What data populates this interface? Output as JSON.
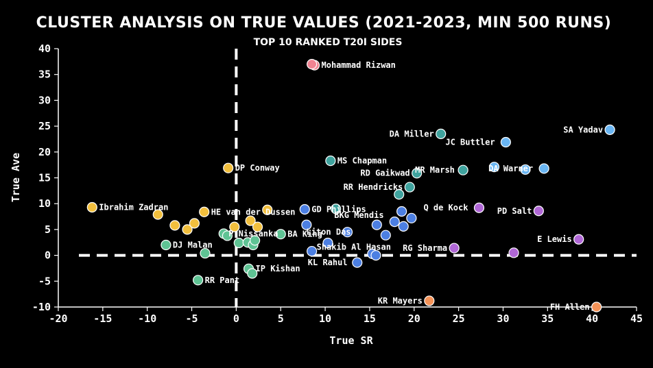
{
  "chart_data": {
    "type": "scatter",
    "title": "CLUSTER ANALYSIS ON TRUE VALUES (2021-2023, MIN 500 RUNS)",
    "subtitle": "TOP 10 RANKED T20I SIDES",
    "xlabel": "True SR",
    "ylabel": "True Ave",
    "xlim": [
      -20,
      45
    ],
    "ylim": [
      -10,
      40
    ],
    "xticks": [
      -20,
      -15,
      -10,
      -5,
      0,
      5,
      10,
      15,
      20,
      25,
      30,
      35,
      40,
      45
    ],
    "yticks": [
      -10,
      -5,
      0,
      5,
      10,
      15,
      20,
      25,
      30,
      35,
      40
    ],
    "reference_lines": {
      "x": 0,
      "y": 0
    },
    "colors": {
      "pink": "#f08392",
      "yellow": "#f2bf3d",
      "green": "#5fc394",
      "teal": "#3fa39e",
      "blue": "#4c7fe2",
      "lightblue": "#6ab6f3",
      "purple": "#b067d6",
      "orange": "#f59358"
    },
    "points": [
      {
        "x": 8.8,
        "y": 36.8,
        "cluster": "pink",
        "label": "Mohammad Rizwan"
      },
      {
        "x": 8.5,
        "y": 37.0,
        "cluster": "pink",
        "label": ""
      },
      {
        "x": -16.2,
        "y": 9.3,
        "cluster": "yellow",
        "label": "Ibrahim Zadran"
      },
      {
        "x": -8.8,
        "y": 7.9,
        "cluster": "yellow",
        "label": ""
      },
      {
        "x": -6.9,
        "y": 5.8,
        "cluster": "yellow",
        "label": ""
      },
      {
        "x": -5.5,
        "y": 5.0,
        "cluster": "yellow",
        "label": ""
      },
      {
        "x": -4.7,
        "y": 6.2,
        "cluster": "yellow",
        "label": ""
      },
      {
        "x": -3.6,
        "y": 8.4,
        "cluster": "yellow",
        "label": "HE van der Dussen"
      },
      {
        "x": -0.9,
        "y": 16.9,
        "cluster": "yellow",
        "label": "DP Conway"
      },
      {
        "x": -0.2,
        "y": 5.5,
        "cluster": "yellow",
        "label": ""
      },
      {
        "x": 1.6,
        "y": 6.7,
        "cluster": "yellow",
        "label": ""
      },
      {
        "x": 2.4,
        "y": 5.5,
        "cluster": "yellow",
        "label": ""
      },
      {
        "x": 3.5,
        "y": 8.8,
        "cluster": "yellow",
        "label": ""
      },
      {
        "x": -7.9,
        "y": 2.0,
        "cluster": "green",
        "label": "DJ Malan"
      },
      {
        "x": -3.5,
        "y": 0.4,
        "cluster": "green",
        "label": ""
      },
      {
        "x": -1.4,
        "y": 4.2,
        "cluster": "green",
        "label": "P Nissanka"
      },
      {
        "x": -1.0,
        "y": 3.8,
        "cluster": "green",
        "label": ""
      },
      {
        "x": 0.3,
        "y": 2.4,
        "cluster": "green",
        "label": ""
      },
      {
        "x": 1.3,
        "y": 2.5,
        "cluster": "green",
        "label": ""
      },
      {
        "x": 1.9,
        "y": 2.0,
        "cluster": "green",
        "label": ""
      },
      {
        "x": 2.1,
        "y": 2.9,
        "cluster": "green",
        "label": ""
      },
      {
        "x": 5.0,
        "y": 4.1,
        "cluster": "green",
        "label": "BA King"
      },
      {
        "x": 1.4,
        "y": -2.6,
        "cluster": "green",
        "label": "IP Kishan"
      },
      {
        "x": 1.8,
        "y": -3.5,
        "cluster": "green",
        "label": ""
      },
      {
        "x": -4.3,
        "y": -4.8,
        "cluster": "green",
        "label": "RR Pant"
      },
      {
        "x": 10.6,
        "y": 18.3,
        "cluster": "teal",
        "label": "MS Chapman"
      },
      {
        "x": 23.0,
        "y": 23.5,
        "cluster": "teal",
        "label": "DA Miller"
      },
      {
        "x": 20.3,
        "y": 15.9,
        "cluster": "teal",
        "label": "RD Gaikwad"
      },
      {
        "x": 19.5,
        "y": 13.2,
        "cluster": "teal",
        "label": "RR Hendricks"
      },
      {
        "x": 18.3,
        "y": 11.8,
        "cluster": "teal",
        "label": ""
      },
      {
        "x": 11.2,
        "y": 9.0,
        "cluster": "teal",
        "label": ""
      },
      {
        "x": 25.5,
        "y": 16.5,
        "cluster": "teal",
        "label": "MR Marsh"
      },
      {
        "x": 7.7,
        "y": 8.9,
        "cluster": "blue",
        "label": "GD Phillips"
      },
      {
        "x": 7.9,
        "y": 5.9,
        "cluster": "blue",
        "label": ""
      },
      {
        "x": 12.5,
        "y": 4.5,
        "cluster": "blue",
        "label": "Liton Das"
      },
      {
        "x": 15.8,
        "y": 5.9,
        "cluster": "blue",
        "label": "BKG Mendis"
      },
      {
        "x": 16.8,
        "y": 3.9,
        "cluster": "blue",
        "label": ""
      },
      {
        "x": 17.8,
        "y": 6.5,
        "cluster": "blue",
        "label": ""
      },
      {
        "x": 18.6,
        "y": 8.5,
        "cluster": "blue",
        "label": ""
      },
      {
        "x": 18.8,
        "y": 5.6,
        "cluster": "blue",
        "label": ""
      },
      {
        "x": 19.7,
        "y": 7.2,
        "cluster": "blue",
        "label": ""
      },
      {
        "x": 10.3,
        "y": 2.4,
        "cluster": "blue",
        "label": ""
      },
      {
        "x": 8.5,
        "y": 0.8,
        "cluster": "blue",
        "label": "Shakib Al Hasan"
      },
      {
        "x": 15.3,
        "y": 0.3,
        "cluster": "blue",
        "label": ""
      },
      {
        "x": 15.7,
        "y": 0.0,
        "cluster": "blue",
        "label": ""
      },
      {
        "x": 13.6,
        "y": -1.4,
        "cluster": "blue",
        "label": "KL Rahul"
      },
      {
        "x": 30.3,
        "y": 21.9,
        "cluster": "lightblue",
        "label": "JC Buttler"
      },
      {
        "x": 29.0,
        "y": 17.1,
        "cluster": "lightblue",
        "label": ""
      },
      {
        "x": 32.5,
        "y": 16.6,
        "cluster": "lightblue",
        "label": ""
      },
      {
        "x": 34.6,
        "y": 16.8,
        "cluster": "lightblue",
        "label": "DA Warner"
      },
      {
        "x": 42.0,
        "y": 24.3,
        "cluster": "lightblue",
        "label": "SA Yadav"
      },
      {
        "x": 27.3,
        "y": 9.2,
        "cluster": "purple",
        "label": "Q de Kock"
      },
      {
        "x": 34.0,
        "y": 8.6,
        "cluster": "purple",
        "label": "PD Salt"
      },
      {
        "x": 24.5,
        "y": 1.4,
        "cluster": "purple",
        "label": "RG Sharma"
      },
      {
        "x": 31.2,
        "y": 0.5,
        "cluster": "purple",
        "label": ""
      },
      {
        "x": 38.5,
        "y": 3.1,
        "cluster": "purple",
        "label": "E Lewis"
      },
      {
        "x": 21.7,
        "y": -8.8,
        "cluster": "orange",
        "label": "KR Mayers"
      },
      {
        "x": 40.5,
        "y": -10.0,
        "cluster": "orange",
        "label": "FH Allen"
      }
    ]
  }
}
